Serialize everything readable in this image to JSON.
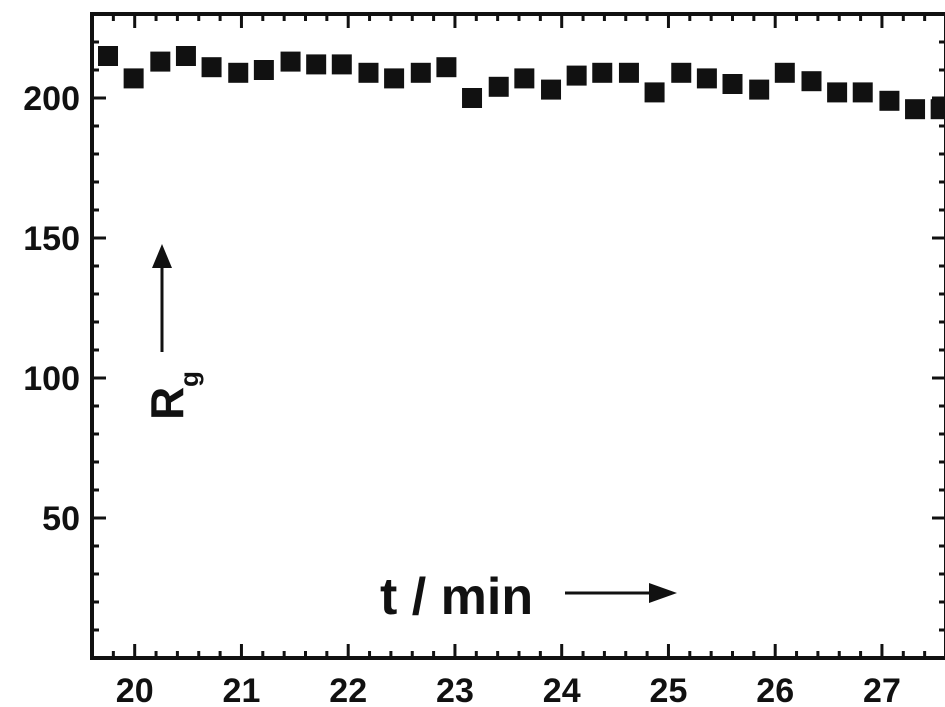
{
  "chart_data": {
    "type": "scatter",
    "title": "",
    "xlabel": "t / min",
    "ylabel_main": "R",
    "ylabel_sub": "g",
    "xlim": [
      19.6,
      27.6
    ],
    "ylim": [
      0,
      230
    ],
    "x_ticks": [
      20,
      21,
      22,
      23,
      24,
      25,
      26,
      27
    ],
    "y_ticks": [
      50,
      100,
      150,
      200
    ],
    "grid": false,
    "legend": "none",
    "marker": "square",
    "marker_color": "#111111",
    "series": [
      {
        "x": [
          19.75,
          19.99,
          20.24,
          20.48,
          20.72,
          20.97,
          21.21,
          21.46,
          21.7,
          21.94,
          22.19,
          22.43,
          22.68,
          22.92,
          23.16,
          23.41,
          23.65,
          23.9,
          24.14,
          24.38,
          24.63,
          24.87,
          25.12,
          25.36,
          25.6,
          25.85,
          26.09,
          26.34,
          26.58,
          26.82,
          27.07,
          27.31,
          27.55
        ],
        "y": [
          215,
          207,
          213,
          215,
          211,
          209,
          210,
          213,
          212,
          212,
          209,
          207,
          209,
          211,
          200,
          204,
          207,
          203,
          208,
          209,
          209,
          202,
          209,
          207,
          205,
          203,
          209,
          206,
          202,
          202,
          199,
          196,
          196
        ]
      }
    ]
  }
}
